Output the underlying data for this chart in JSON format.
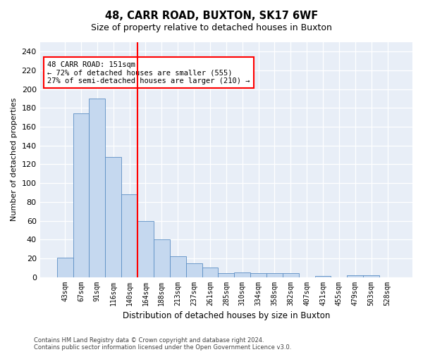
{
  "title": "48, CARR ROAD, BUXTON, SK17 6WF",
  "subtitle": "Size of property relative to detached houses in Buxton",
  "xlabel": "Distribution of detached houses by size in Buxton",
  "ylabel": "Number of detached properties",
  "categories": [
    "43sqm",
    "67sqm",
    "91sqm",
    "116sqm",
    "140sqm",
    "164sqm",
    "188sqm",
    "213sqm",
    "237sqm",
    "261sqm",
    "285sqm",
    "310sqm",
    "334sqm",
    "358sqm",
    "382sqm",
    "407sqm",
    "431sqm",
    "455sqm",
    "479sqm",
    "503sqm",
    "528sqm"
  ],
  "values": [
    21,
    174,
    190,
    128,
    88,
    60,
    40,
    22,
    15,
    10,
    4,
    5,
    4,
    4,
    4,
    0,
    1,
    0,
    2,
    2,
    0
  ],
  "bar_color": "#c5d8ef",
  "bar_edge_color": "#5b8ec4",
  "vline_color": "red",
  "vline_pos": 4.5,
  "annotation_text": "48 CARR ROAD: 151sqm\n← 72% of detached houses are smaller (555)\n27% of semi-detached houses are larger (210) →",
  "annotation_box_color": "white",
  "annotation_box_edge": "red",
  "ylim": [
    0,
    250
  ],
  "yticks": [
    0,
    20,
    40,
    60,
    80,
    100,
    120,
    140,
    160,
    180,
    200,
    220,
    240
  ],
  "footer1": "Contains HM Land Registry data © Crown copyright and database right 2024.",
  "footer2": "Contains public sector information licensed under the Open Government Licence v3.0.",
  "fig_bg_color": "#ffffff",
  "plot_bg_color": "#e8eef7"
}
